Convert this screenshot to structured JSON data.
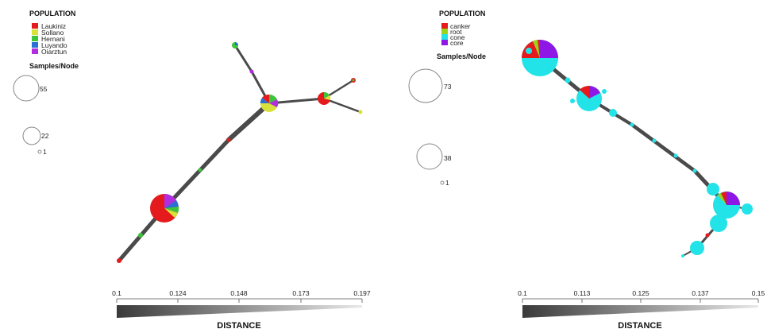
{
  "panels": [
    {
      "id": "left",
      "legend_title": "POPULATION",
      "legend": [
        {
          "label": "Laukiniz",
          "color": "#e41a1c"
        },
        {
          "label": "Sollano",
          "color": "#d8e23a"
        },
        {
          "label": "Hernani",
          "color": "#3cc43c"
        },
        {
          "label": "Luyando",
          "color": "#2a6fd6"
        },
        {
          "label": "Oiarztun",
          "color": "#b02ee0"
        }
      ],
      "size_title": "Samples/Node",
      "size_labels": [
        "55",
        "22",
        "1"
      ],
      "distance_ticks": [
        "0.1",
        "0.124",
        "0.148",
        "0.173",
        "0.197"
      ],
      "distance_label": "DISTANCE"
    },
    {
      "id": "right",
      "legend_title": "POPULATION",
      "legend": [
        {
          "label": "canker",
          "color": "#e41a1c"
        },
        {
          "label": "root",
          "color": "#9ad31c"
        },
        {
          "label": "cone",
          "color": "#22e3e8"
        },
        {
          "label": "core",
          "color": "#8f17e6"
        }
      ],
      "size_title": "Samples/Node",
      "size_labels": [
        "73",
        "38",
        "1"
      ],
      "distance_ticks": [
        "0.1",
        "0.113",
        "0.125",
        "0.137",
        "0.15"
      ],
      "distance_label": "DISTANCE"
    }
  ]
}
